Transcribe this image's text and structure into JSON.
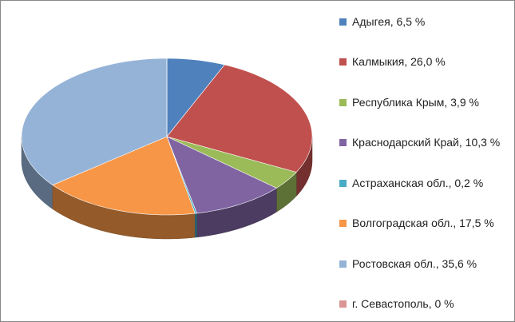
{
  "chart_data": {
    "type": "pie3d",
    "categories": [
      "Адыгея, 6,5 %",
      "Калмыкия, 26,0 %",
      "Республика Крым, 3,9 %",
      "Краснодарский Край, 10,3 %",
      "Астраханская обл., 0,2 %",
      "Волгоградская обл., 17,5 %",
      "Ростовская обл., 35,6 %",
      "г. Севастополь, 0 %"
    ],
    "values": [
      6.5,
      26.0,
      3.9,
      10.3,
      0.2,
      17.5,
      35.6,
      0
    ],
    "colors": [
      "#4f81bd",
      "#c0504d",
      "#9bbb59",
      "#8064a2",
      "#4bacc6",
      "#f79646",
      "#95b3d7",
      "#d99694"
    ],
    "legend": "right"
  }
}
